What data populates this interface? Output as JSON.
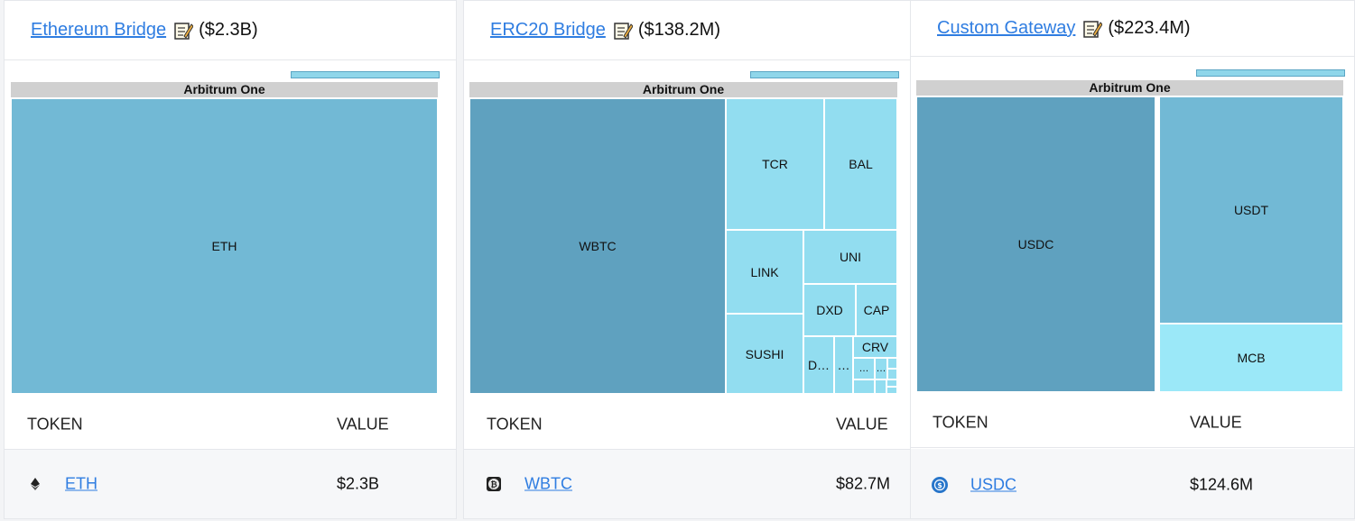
{
  "cards": [
    {
      "title": "Ethereum Bridge",
      "amount": "($2.3B)",
      "root_label": "Arbitrum One",
      "tiles": [
        "ETH"
      ],
      "table": {
        "col_token": "TOKEN",
        "col_value": "VALUE",
        "token": "ETH",
        "value": "$2.3B",
        "token_icon": "ethereum-icon"
      }
    },
    {
      "title": "ERC20 Bridge",
      "amount": "($138.2M)",
      "root_label": "Arbitrum One",
      "tiles": [
        "WBTC",
        "TCR",
        "BAL",
        "LINK",
        "UNI",
        "DXD",
        "CAP",
        "SUSHI",
        "D…",
        "…",
        "CRV",
        "…",
        "…"
      ],
      "table": {
        "col_token": "TOKEN",
        "col_value": "VALUE",
        "token": "WBTC",
        "value": "$82.7M",
        "token_icon": "wbtc-icon"
      }
    },
    {
      "title": "Custom Gateway",
      "amount": "($223.4M)",
      "root_label": "Arbitrum One",
      "tiles": [
        "USDC",
        "USDT",
        "MCB"
      ],
      "table": {
        "col_token": "TOKEN",
        "col_value": "VALUE",
        "token": "USDC",
        "value": "$124.6M",
        "token_icon": "usdc-icon"
      }
    }
  ],
  "colors": {
    "link": "#2f7de1",
    "tile_dark": "#5fa1bf",
    "tile_mid": "#72b9d5",
    "tile_light": "#92ddf0"
  }
}
